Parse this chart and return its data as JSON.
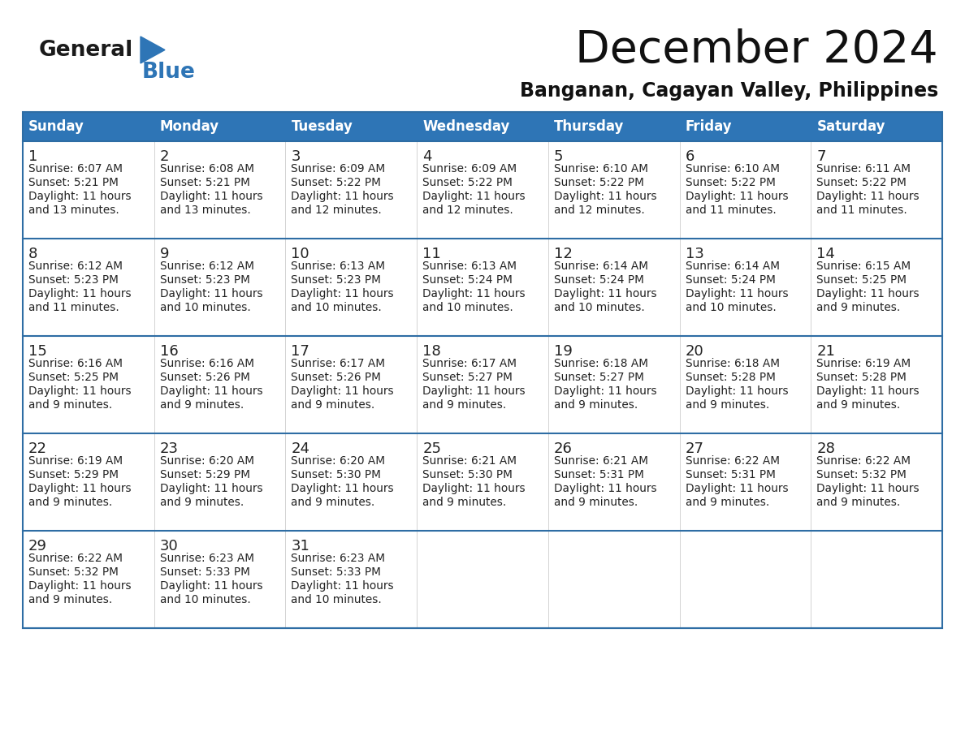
{
  "title": "December 2024",
  "subtitle": "Banganan, Cagayan Valley, Philippines",
  "header_color": "#2E75B6",
  "header_text_color": "#FFFFFF",
  "cell_bg_color": "#FFFFFF",
  "row_divider_color": "#2E6DA4",
  "text_color": "#222222",
  "days_of_week": [
    "Sunday",
    "Monday",
    "Tuesday",
    "Wednesday",
    "Thursday",
    "Friday",
    "Saturday"
  ],
  "calendar_data": [
    [
      {
        "day": 1,
        "sunrise": "6:07 AM",
        "sunset": "5:21 PM",
        "daylight": "11 hours and 13 minutes."
      },
      {
        "day": 2,
        "sunrise": "6:08 AM",
        "sunset": "5:21 PM",
        "daylight": "11 hours and 13 minutes."
      },
      {
        "day": 3,
        "sunrise": "6:09 AM",
        "sunset": "5:22 PM",
        "daylight": "11 hours and 12 minutes."
      },
      {
        "day": 4,
        "sunrise": "6:09 AM",
        "sunset": "5:22 PM",
        "daylight": "11 hours and 12 minutes."
      },
      {
        "day": 5,
        "sunrise": "6:10 AM",
        "sunset": "5:22 PM",
        "daylight": "11 hours and 12 minutes."
      },
      {
        "day": 6,
        "sunrise": "6:10 AM",
        "sunset": "5:22 PM",
        "daylight": "11 hours and 11 minutes."
      },
      {
        "day": 7,
        "sunrise": "6:11 AM",
        "sunset": "5:22 PM",
        "daylight": "11 hours and 11 minutes."
      }
    ],
    [
      {
        "day": 8,
        "sunrise": "6:12 AM",
        "sunset": "5:23 PM",
        "daylight": "11 hours and 11 minutes."
      },
      {
        "day": 9,
        "sunrise": "6:12 AM",
        "sunset": "5:23 PM",
        "daylight": "11 hours and 10 minutes."
      },
      {
        "day": 10,
        "sunrise": "6:13 AM",
        "sunset": "5:23 PM",
        "daylight": "11 hours and 10 minutes."
      },
      {
        "day": 11,
        "sunrise": "6:13 AM",
        "sunset": "5:24 PM",
        "daylight": "11 hours and 10 minutes."
      },
      {
        "day": 12,
        "sunrise": "6:14 AM",
        "sunset": "5:24 PM",
        "daylight": "11 hours and 10 minutes."
      },
      {
        "day": 13,
        "sunrise": "6:14 AM",
        "sunset": "5:24 PM",
        "daylight": "11 hours and 10 minutes."
      },
      {
        "day": 14,
        "sunrise": "6:15 AM",
        "sunset": "5:25 PM",
        "daylight": "11 hours and 9 minutes."
      }
    ],
    [
      {
        "day": 15,
        "sunrise": "6:16 AM",
        "sunset": "5:25 PM",
        "daylight": "11 hours and 9 minutes."
      },
      {
        "day": 16,
        "sunrise": "6:16 AM",
        "sunset": "5:26 PM",
        "daylight": "11 hours and 9 minutes."
      },
      {
        "day": 17,
        "sunrise": "6:17 AM",
        "sunset": "5:26 PM",
        "daylight": "11 hours and 9 minutes."
      },
      {
        "day": 18,
        "sunrise": "6:17 AM",
        "sunset": "5:27 PM",
        "daylight": "11 hours and 9 minutes."
      },
      {
        "day": 19,
        "sunrise": "6:18 AM",
        "sunset": "5:27 PM",
        "daylight": "11 hours and 9 minutes."
      },
      {
        "day": 20,
        "sunrise": "6:18 AM",
        "sunset": "5:28 PM",
        "daylight": "11 hours and 9 minutes."
      },
      {
        "day": 21,
        "sunrise": "6:19 AM",
        "sunset": "5:28 PM",
        "daylight": "11 hours and 9 minutes."
      }
    ],
    [
      {
        "day": 22,
        "sunrise": "6:19 AM",
        "sunset": "5:29 PM",
        "daylight": "11 hours and 9 minutes."
      },
      {
        "day": 23,
        "sunrise": "6:20 AM",
        "sunset": "5:29 PM",
        "daylight": "11 hours and 9 minutes."
      },
      {
        "day": 24,
        "sunrise": "6:20 AM",
        "sunset": "5:30 PM",
        "daylight": "11 hours and 9 minutes."
      },
      {
        "day": 25,
        "sunrise": "6:21 AM",
        "sunset": "5:30 PM",
        "daylight": "11 hours and 9 minutes."
      },
      {
        "day": 26,
        "sunrise": "6:21 AM",
        "sunset": "5:31 PM",
        "daylight": "11 hours and 9 minutes."
      },
      {
        "day": 27,
        "sunrise": "6:22 AM",
        "sunset": "5:31 PM",
        "daylight": "11 hours and 9 minutes."
      },
      {
        "day": 28,
        "sunrise": "6:22 AM",
        "sunset": "5:32 PM",
        "daylight": "11 hours and 9 minutes."
      }
    ],
    [
      {
        "day": 29,
        "sunrise": "6:22 AM",
        "sunset": "5:32 PM",
        "daylight": "11 hours and 9 minutes."
      },
      {
        "day": 30,
        "sunrise": "6:23 AM",
        "sunset": "5:33 PM",
        "daylight": "11 hours and 10 minutes."
      },
      {
        "day": 31,
        "sunrise": "6:23 AM",
        "sunset": "5:33 PM",
        "daylight": "11 hours and 10 minutes."
      },
      null,
      null,
      null,
      null
    ]
  ],
  "logo_general_color": "#1a1a1a",
  "logo_blue_color": "#2E75B6",
  "logo_triangle_color": "#2E75B6"
}
